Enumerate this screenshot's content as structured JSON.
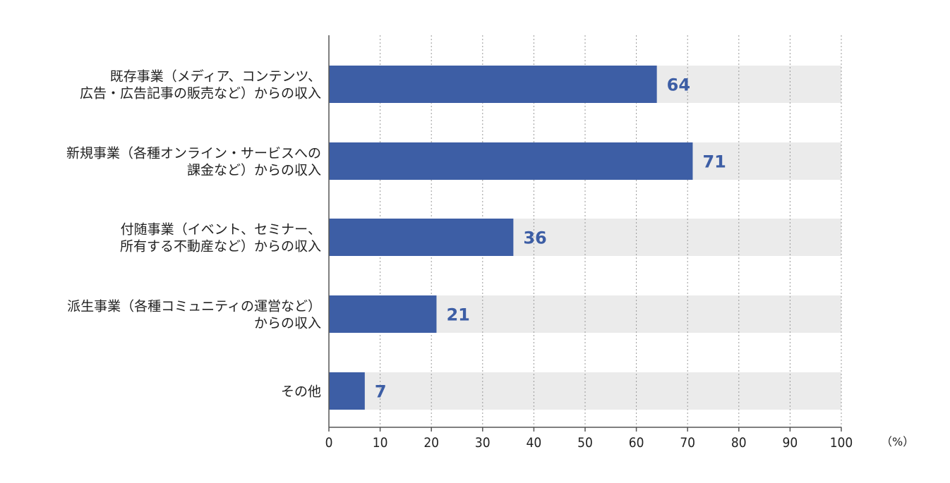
{
  "chart_data": {
    "type": "bar",
    "orientation": "horizontal",
    "categories": [
      [
        "既存事業（メディア、コンテンツ、",
        "広告・広告記事の販売など）からの収入"
      ],
      [
        "新規事業（各種オンライン・サービスへの",
        "課金など）からの収入"
      ],
      [
        "付随事業（イベント、セミナー、",
        "所有する不動産など）からの収入"
      ],
      [
        "派生事業（各種コミュニティの運営など）",
        "からの収入"
      ],
      [
        "その他"
      ]
    ],
    "values": [
      64,
      71,
      36,
      21,
      7
    ],
    "value_labels": [
      "64",
      "71",
      "36",
      "21",
      "7"
    ],
    "xlim": [
      0,
      100
    ],
    "x_ticks": [
      "0",
      "10",
      "20",
      "30",
      "40",
      "50",
      "60",
      "70",
      "80",
      "90",
      "100"
    ],
    "x_unit": "（%）",
    "grid": "vertical-dotted",
    "colors": {
      "bar": "#3d5ea5",
      "track": "#ebebeb",
      "value_text": "#3d5ea5",
      "axis": "#555555",
      "grid": "#999999"
    }
  }
}
